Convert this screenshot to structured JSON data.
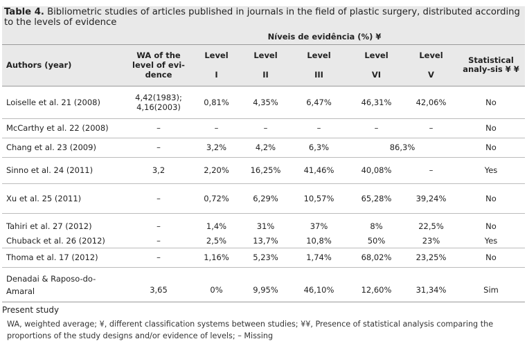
{
  "caption": {
    "label": "Table 4.",
    "text": " Bibliometric studies of articles published in journals in the field of plastic surgery, distributed according to the levels of evidence"
  },
  "table": {
    "group_header": "Níveis de evidência (%) ¥",
    "col_authors": "Authors (year)",
    "col_wa": "WA of the level of evi-dence",
    "levels": [
      {
        "word": "Level",
        "num": "I"
      },
      {
        "word": "Level",
        "num": "II"
      },
      {
        "word": "Level",
        "num": "III"
      },
      {
        "word": "Level",
        "num": "VI"
      },
      {
        "word": "Level",
        "num": "V"
      }
    ],
    "col_stat": "Statistical analy-sis ¥ ¥",
    "rows": [
      {
        "author": "Loiselle et al. 21  (2008)",
        "wa": "4,42(1983); 4,16(2003)",
        "l1": "0,81%",
        "l2": "4,35%",
        "l3": "6,47%",
        "l4": "46,31%",
        "l5": "42,06%",
        "stat": "No"
      },
      {
        "author": "McCarthy et al. 22 (2008)",
        "wa": "–",
        "l1": "–",
        "l2": "–",
        "l3": "–",
        "l4": "–",
        "l5": "–",
        "stat": "No"
      },
      {
        "author": "Chang et al. 23 (2009)",
        "wa": "–",
        "l1": "3,2%",
        "l2": "4,2%",
        "l3": "6,3%",
        "l45": "86,3%",
        "stat": "No"
      },
      {
        "author": "Sinno et al. 24 (2011)",
        "wa": "3,2",
        "l1": "2,20%",
        "l2": "16,25%",
        "l3": "41,46%",
        "l4": "40,08%",
        "l5": "–",
        "stat": "Yes"
      },
      {
        "author": "Xu et al. 25 (2011)",
        "wa": "–",
        "l1": "0,72%",
        "l2": "6,29%",
        "l3": "10,57%",
        "l4": "65,28%",
        "l5": "39,24%",
        "stat": "No"
      },
      {
        "author": "Tahiri et al. 27 (2012)",
        "wa": "–",
        "l1": "1,4%",
        "l2": "31%",
        "l3": "37%",
        "l4": "8%",
        "l5": "22,5%",
        "stat": "No"
      },
      {
        "author": "Chuback et al. 26 (2012)",
        "wa": "–",
        "l1": "2,5%",
        "l2": "13,7%",
        "l3": "10,8%",
        "l4": "50%",
        "l5": "23%",
        "stat": "Yes"
      },
      {
        "author": "Thoma et al. 17  (2012)",
        "wa": "–",
        "l1": "1,16%",
        "l2": "5,23%",
        "l3": "1,74%",
        "l4": "68,02%",
        "l5": "23,25%",
        "stat": "No"
      },
      {
        "author": "Denadai & Raposo-do-Amaral",
        "wa": "3,65",
        "l1": "0%",
        "l2": "9,95%",
        "l3": "46,10%",
        "l4": "12,60%",
        "l5": "31,34%",
        "stat": "Sim"
      }
    ]
  },
  "footer": {
    "title": "Present study",
    "note": "WA, weighted average; ¥, different classification systems between studies; ¥¥, Presence of statistical analysis comparing the proportions of the study designs and/or evidence of levels; – Missing"
  }
}
